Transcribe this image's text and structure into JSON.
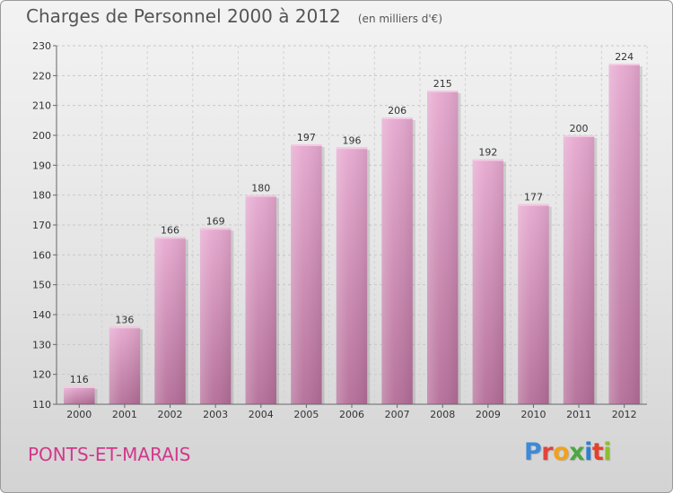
{
  "chart_data": {
    "type": "bar",
    "title": "Charges de Personnel 2000 à 2012",
    "subtitle": "(en milliers d'€)",
    "categories": [
      "2000",
      "2001",
      "2002",
      "2003",
      "2004",
      "2005",
      "2006",
      "2007",
      "2008",
      "2009",
      "2010",
      "2011",
      "2012"
    ],
    "values": [
      116,
      136,
      166,
      169,
      180,
      197,
      196,
      206,
      215,
      192,
      177,
      200,
      224
    ],
    "ylim": [
      110,
      230
    ],
    "yticks": [
      110,
      120,
      130,
      140,
      150,
      160,
      170,
      180,
      190,
      200,
      210,
      220,
      230
    ],
    "grid": true,
    "bar_color": "#d486b4"
  },
  "footer": {
    "commune": "PONTS-ET-MARAIS",
    "logo_letters": [
      {
        "ch": "P",
        "color": "#3d8ad6"
      },
      {
        "ch": "r",
        "color": "#e0443c"
      },
      {
        "ch": "o",
        "color": "#f0a21c"
      },
      {
        "ch": "x",
        "color": "#4aa83f"
      },
      {
        "ch": "i",
        "color": "#2f7fcf"
      },
      {
        "ch": "t",
        "color": "#e6402d"
      },
      {
        "ch": "i",
        "color": "#8bbf2d"
      }
    ]
  }
}
